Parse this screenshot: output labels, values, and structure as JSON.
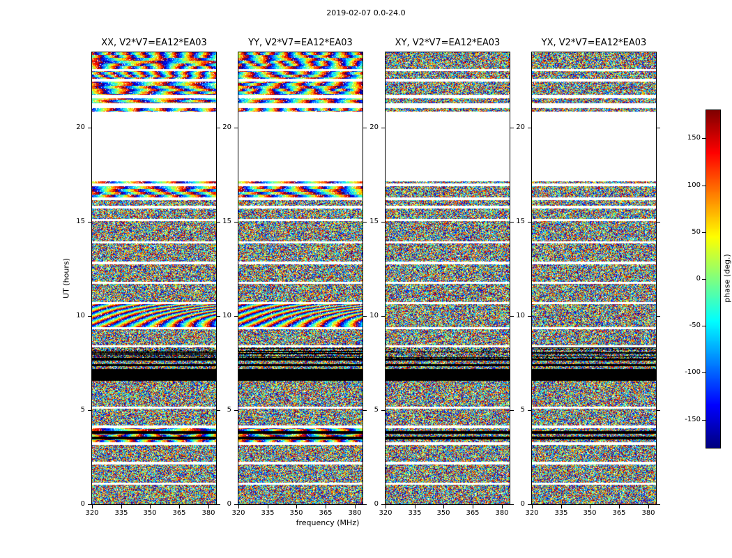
{
  "chart_data": {
    "type": "heatmap",
    "title": "2019-02-07 0.0-24.0",
    "xlabel": "frequency (MHz)",
    "ylabel": "UT (hours)",
    "x_range": [
      320,
      384
    ],
    "x_ticks": [
      320,
      335,
      350,
      365,
      380
    ],
    "y_range": [
      0,
      24
    ],
    "y_ticks": [
      0,
      5,
      10,
      15,
      20
    ],
    "panels": [
      {
        "title": "XX, V2*V7=EA12*EA03",
        "pattern": "phase-stripes"
      },
      {
        "title": "YY, V2*V7=EA12*EA03",
        "pattern": "phase-stripes"
      },
      {
        "title": "XY, V2*V7=EA12*EA03",
        "pattern": "random-noise"
      },
      {
        "title": "YX, V2*V7=EA12*EA03",
        "pattern": "random-noise"
      }
    ],
    "colorbar": {
      "label": "phase (deg.)",
      "min": -180,
      "max": 180,
      "ticks": [
        150,
        100,
        50,
        0,
        -50,
        -100,
        -150
      ],
      "colormap": "jet"
    },
    "colors": {
      "no_data": "#ffffff",
      "flagged": "#000000",
      "frame": "#000000"
    },
    "time_bands": [
      {
        "from": 0.0,
        "to": 1.05,
        "kind": "data",
        "style": "noise"
      },
      {
        "from": 1.05,
        "to": 1.15,
        "kind": "gap"
      },
      {
        "from": 1.15,
        "to": 2.1,
        "kind": "data",
        "style": "noise"
      },
      {
        "from": 2.1,
        "to": 2.25,
        "kind": "gap"
      },
      {
        "from": 2.25,
        "to": 3.15,
        "kind": "data",
        "style": "noise"
      },
      {
        "from": 3.15,
        "to": 3.28,
        "kind": "gap"
      },
      {
        "from": 3.28,
        "to": 3.45,
        "kind": "data",
        "style": "stripes"
      },
      {
        "from": 3.45,
        "to": 3.58,
        "kind": "flag"
      },
      {
        "from": 3.58,
        "to": 3.75,
        "kind": "data",
        "style": "stripes"
      },
      {
        "from": 3.75,
        "to": 3.88,
        "kind": "flag"
      },
      {
        "from": 3.88,
        "to": 4.05,
        "kind": "data",
        "style": "stripes"
      },
      {
        "from": 4.05,
        "to": 4.18,
        "kind": "gap"
      },
      {
        "from": 4.18,
        "to": 5.08,
        "kind": "data",
        "style": "noise"
      },
      {
        "from": 5.08,
        "to": 5.2,
        "kind": "gap"
      },
      {
        "from": 5.2,
        "to": 6.55,
        "kind": "data",
        "style": "noise"
      },
      {
        "from": 6.55,
        "to": 7.2,
        "kind": "flag"
      },
      {
        "from": 7.2,
        "to": 7.33,
        "kind": "data",
        "style": "noise"
      },
      {
        "from": 7.33,
        "to": 7.46,
        "kind": "flag"
      },
      {
        "from": 7.46,
        "to": 7.62,
        "kind": "data",
        "style": "noise"
      },
      {
        "from": 7.62,
        "to": 7.75,
        "kind": "flag"
      },
      {
        "from": 7.75,
        "to": 8.32,
        "kind": "data",
        "style": "dark"
      },
      {
        "from": 8.32,
        "to": 8.45,
        "kind": "gap"
      },
      {
        "from": 8.45,
        "to": 9.3,
        "kind": "data",
        "style": "noise"
      },
      {
        "from": 9.3,
        "to": 9.42,
        "kind": "gap"
      },
      {
        "from": 9.42,
        "to": 10.62,
        "kind": "data",
        "style": "moire"
      },
      {
        "from": 10.62,
        "to": 10.75,
        "kind": "gap"
      },
      {
        "from": 10.75,
        "to": 11.7,
        "kind": "data",
        "style": "noise"
      },
      {
        "from": 11.7,
        "to": 11.82,
        "kind": "gap"
      },
      {
        "from": 11.82,
        "to": 12.75,
        "kind": "data",
        "style": "noise"
      },
      {
        "from": 12.75,
        "to": 12.88,
        "kind": "gap"
      },
      {
        "from": 12.88,
        "to": 13.85,
        "kind": "data",
        "style": "noise"
      },
      {
        "from": 13.85,
        "to": 13.98,
        "kind": "gap"
      },
      {
        "from": 13.98,
        "to": 15.05,
        "kind": "data",
        "style": "noise"
      },
      {
        "from": 15.05,
        "to": 15.15,
        "kind": "gap"
      },
      {
        "from": 15.15,
        "to": 15.7,
        "kind": "data",
        "style": "noise"
      },
      {
        "from": 15.7,
        "to": 15.85,
        "kind": "gap"
      },
      {
        "from": 15.85,
        "to": 16.15,
        "kind": "data",
        "style": "noise"
      },
      {
        "from": 16.15,
        "to": 16.28,
        "kind": "gap"
      },
      {
        "from": 16.28,
        "to": 16.9,
        "kind": "data",
        "style": "stripes"
      },
      {
        "from": 16.9,
        "to": 17.02,
        "kind": "gap"
      },
      {
        "from": 17.02,
        "to": 17.15,
        "kind": "data",
        "style": "stripes"
      },
      {
        "from": 17.15,
        "to": 20.85,
        "kind": "gap"
      },
      {
        "from": 20.85,
        "to": 21.05,
        "kind": "data",
        "style": "stripes"
      },
      {
        "from": 21.05,
        "to": 21.3,
        "kind": "gap"
      },
      {
        "from": 21.3,
        "to": 21.55,
        "kind": "data",
        "style": "stripes"
      },
      {
        "from": 21.55,
        "to": 21.75,
        "kind": "gap"
      },
      {
        "from": 21.75,
        "to": 22.45,
        "kind": "data",
        "style": "stripes"
      },
      {
        "from": 22.45,
        "to": 22.6,
        "kind": "gap"
      },
      {
        "from": 22.6,
        "to": 23.0,
        "kind": "data",
        "style": "stripes"
      },
      {
        "from": 23.0,
        "to": 23.1,
        "kind": "gap"
      },
      {
        "from": 23.1,
        "to": 24.0,
        "kind": "data",
        "style": "stripes"
      }
    ]
  }
}
